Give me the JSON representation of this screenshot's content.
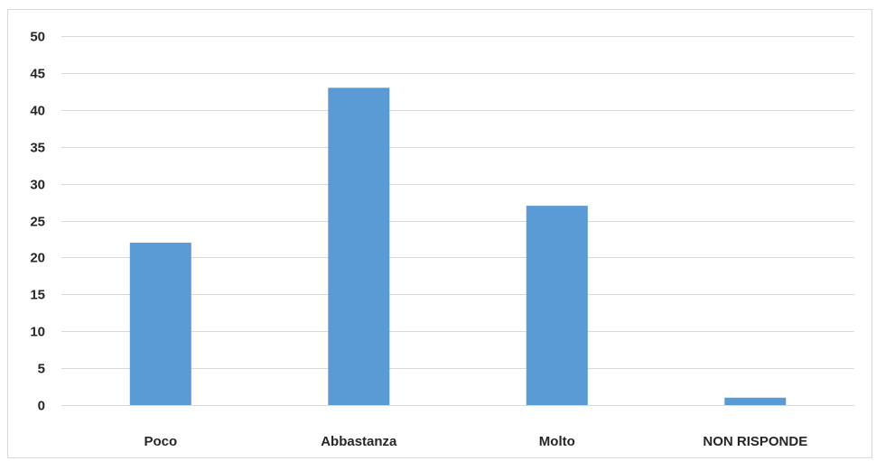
{
  "chart_data": {
    "type": "bar",
    "categories": [
      "Poco",
      "Abbastanza",
      "Molto",
      "NON RISPONDE"
    ],
    "values": [
      22,
      43,
      27,
      1
    ],
    "title": "",
    "xlabel": "",
    "ylabel": "",
    "ylim": [
      0,
      50
    ],
    "yticks": [
      0,
      5,
      10,
      15,
      20,
      25,
      30,
      35,
      40,
      45,
      50
    ],
    "grid": true,
    "legend": "none",
    "bar_color": "#5b9bd5",
    "grid_color": "#d9d9d9"
  }
}
